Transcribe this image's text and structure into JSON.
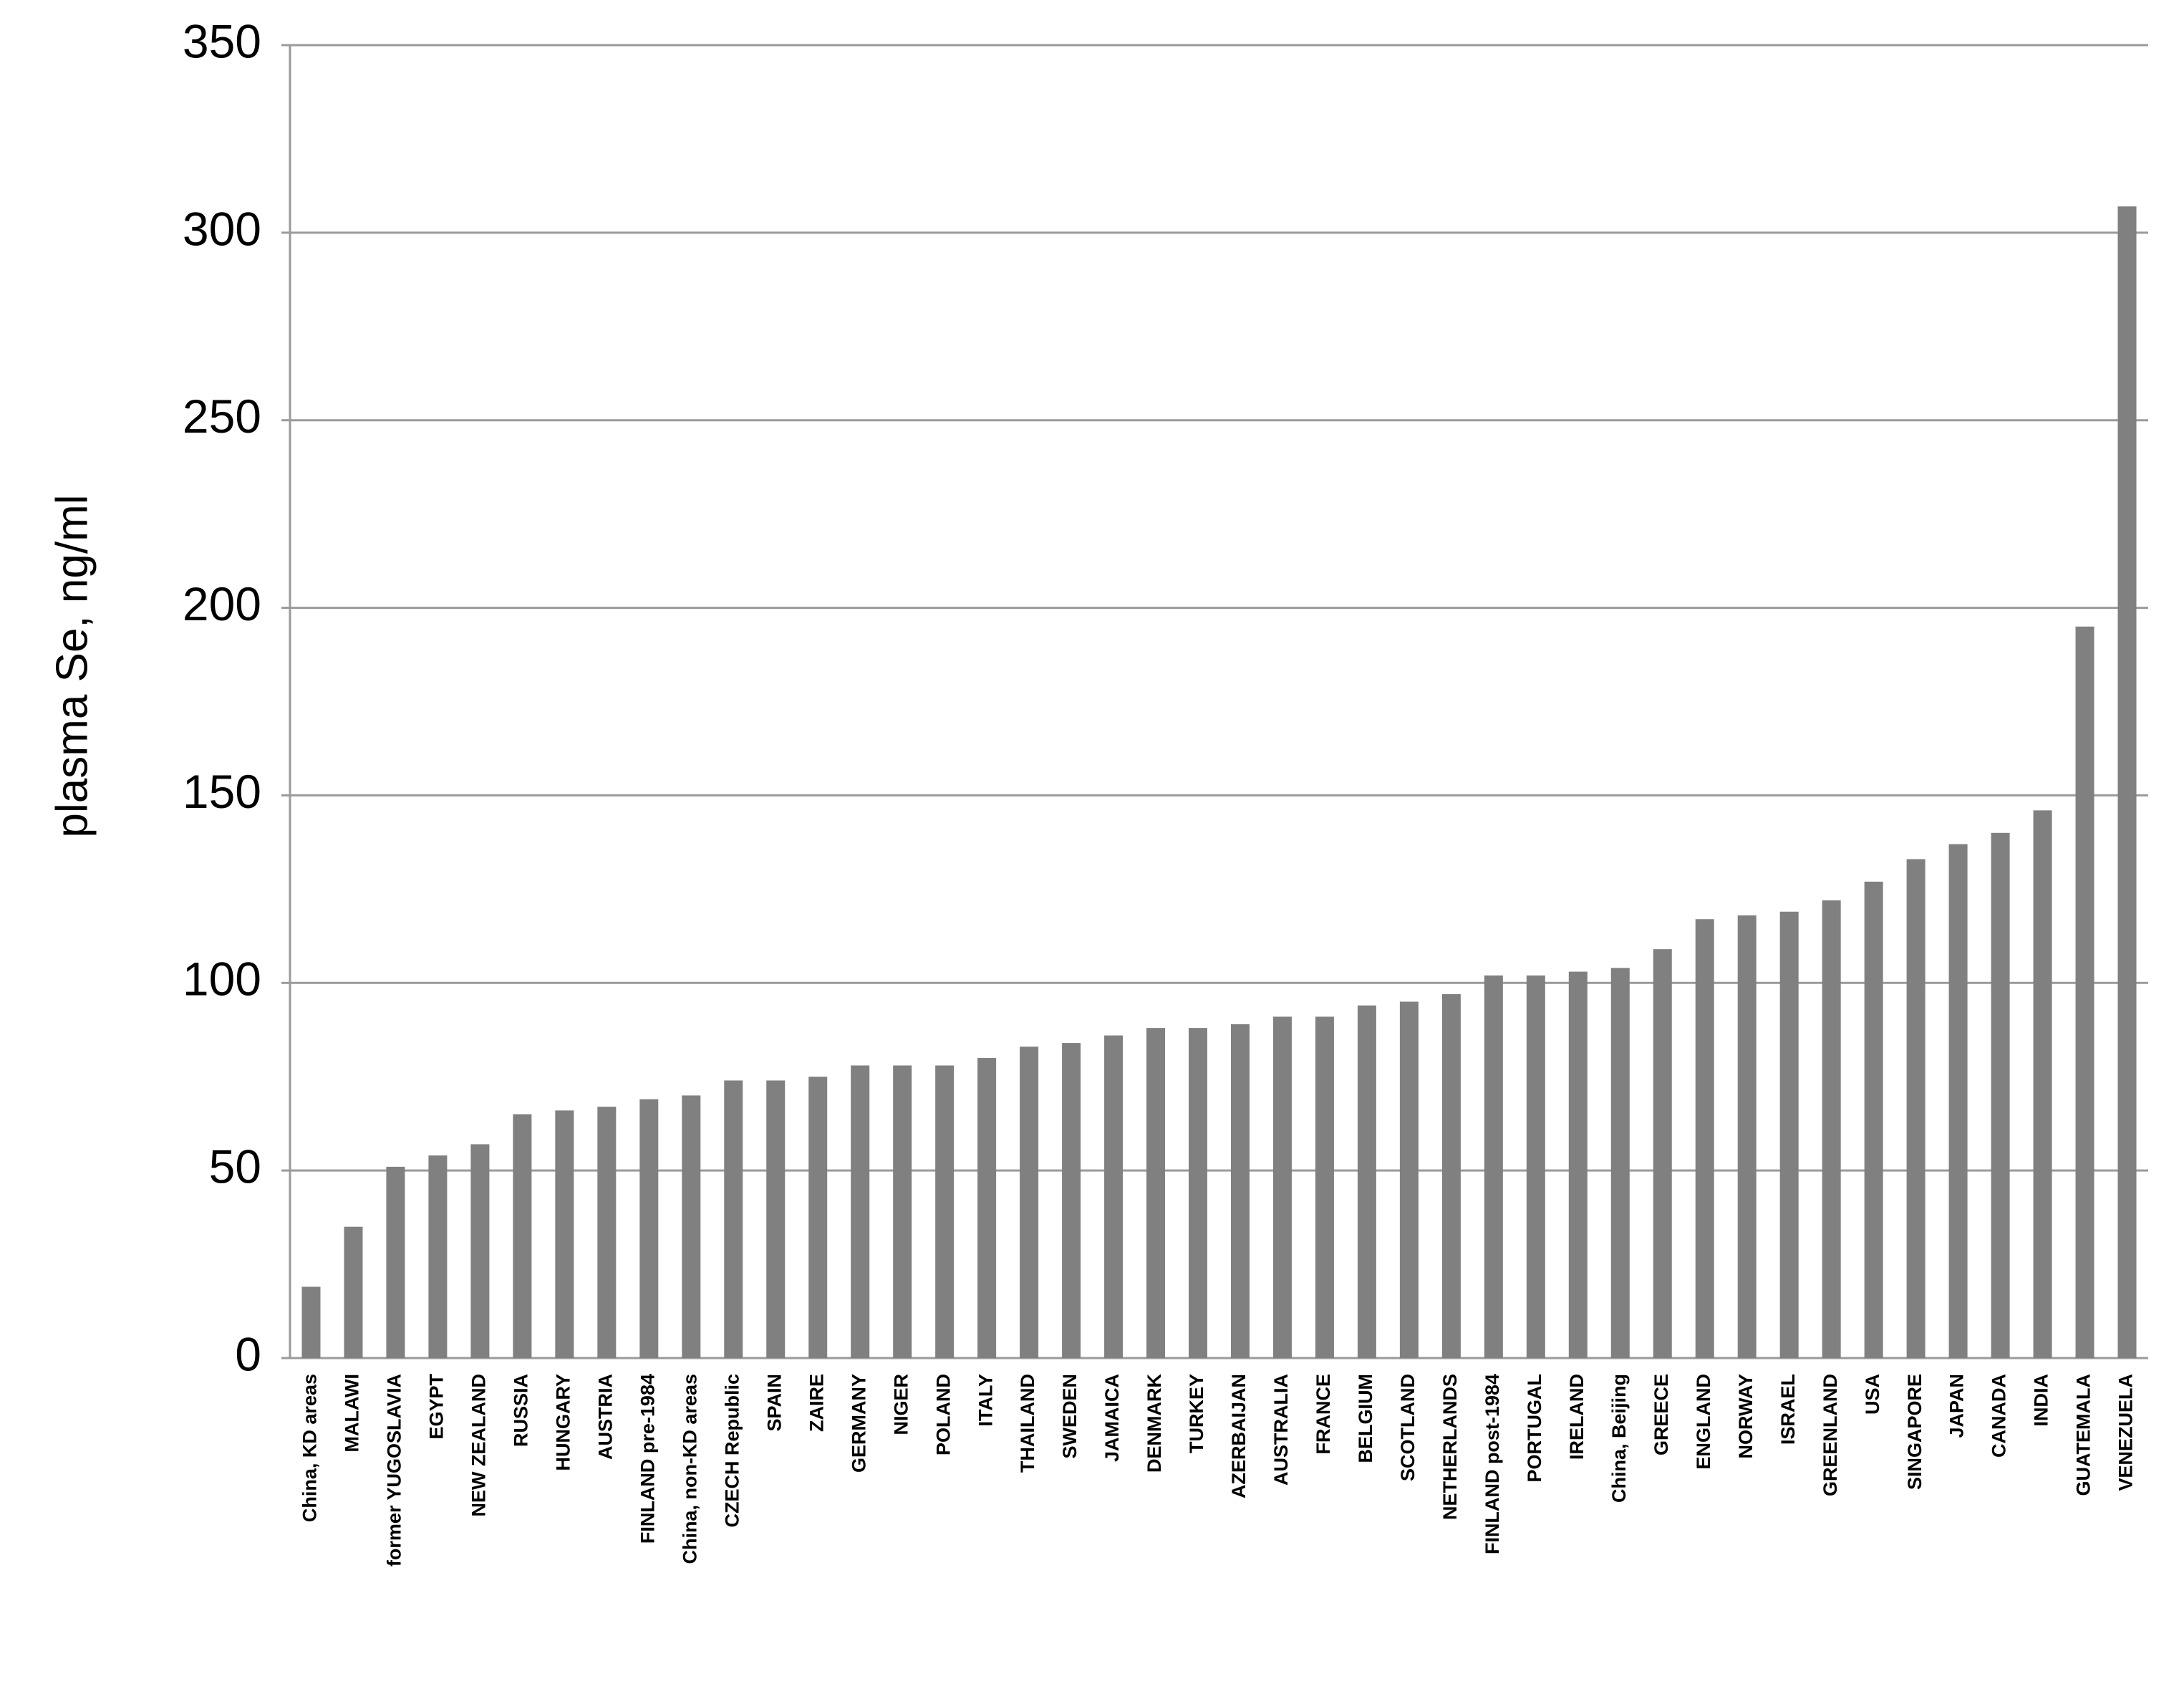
{
  "chart_data": {
    "type": "bar",
    "y_axis_label": "plasma Se, ng/ml",
    "categories": [
      "China, KD areas",
      "MALAWI",
      "former YUGOSLAVIA",
      "EGYPT",
      "NEW ZEALAND",
      "RUSSIA",
      "HUNGARY",
      "AUSTRIA",
      "FINLAND pre-1984",
      "China, non-KD areas",
      "CZECH Republic",
      "SPAIN",
      "ZAIRE",
      "GERMANY",
      "NIGER",
      "POLAND",
      "ITALY",
      "THAILAND",
      "SWEDEN",
      "JAMAICA",
      "DENMARK",
      "TURKEY",
      "AZERBAIJAN",
      "AUSTRALIA",
      "FRANCE",
      "BELGIUM",
      "SCOTLAND",
      "NETHERLANDS",
      "FINLAND post-1984",
      "PORTUGAL",
      "IRELAND",
      "China, Beijing",
      "GREECE",
      "ENGLAND",
      "NORWAY",
      "ISRAEL",
      "GREENLAND",
      "USA",
      "SINGAPORE",
      "JAPAN",
      "CANADA",
      "INDIA",
      "GUATEMALA",
      "VENEZUELA"
    ],
    "values": [
      19,
      35,
      51,
      54,
      57,
      65,
      66,
      67,
      69,
      70,
      74,
      74,
      75,
      78,
      78,
      78,
      80,
      83,
      84,
      86,
      88,
      88,
      89,
      91,
      91,
      94,
      95,
      97,
      102,
      102,
      103,
      104,
      109,
      117,
      118,
      119,
      122,
      127,
      133,
      137,
      140,
      146,
      195,
      307
    ],
    "color": "#808080",
    "ylim": [
      0,
      350
    ],
    "yticks": [
      0,
      50,
      100,
      150,
      200,
      250,
      300,
      350
    ],
    "grid": true
  }
}
